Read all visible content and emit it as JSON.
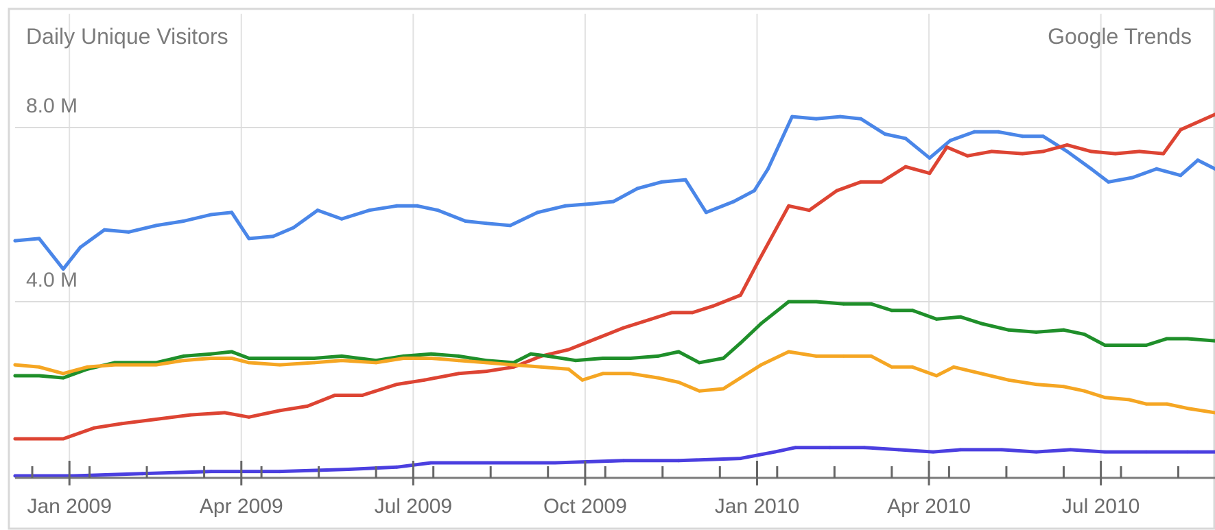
{
  "chart_data": {
    "type": "line",
    "title": "Daily Unique Visitors",
    "source": "Google Trends",
    "y_ticks": [
      {
        "value": 4.0,
        "label": "4.0 M"
      },
      {
        "value": 8.0,
        "label": "8.0 M"
      }
    ],
    "ylim": [
      0,
      10.0
    ],
    "x_ticks": [
      {
        "value": 2009.0,
        "label": "Jan 2009"
      },
      {
        "value": 2009.25,
        "label": "Apr 2009"
      },
      {
        "value": 2009.5,
        "label": "Jul 2009"
      },
      {
        "value": 2009.75,
        "label": "Oct 2009"
      },
      {
        "value": 2010.0,
        "label": "Jan 2010"
      },
      {
        "value": 2010.25,
        "label": "Apr 2010"
      },
      {
        "value": 2010.5,
        "label": "Jul 2010"
      }
    ],
    "xlim": [
      2008.915,
      2010.66
    ],
    "grid": true,
    "series": [
      {
        "color": "#4a86e8",
        "points": [
          [
            2008.915,
            5.4
          ],
          [
            2008.95,
            5.45
          ],
          [
            2008.985,
            4.75
          ],
          [
            2009.01,
            5.25
          ],
          [
            2009.045,
            5.65
          ],
          [
            2009.08,
            5.6
          ],
          [
            2009.12,
            5.75
          ],
          [
            2009.16,
            5.85
          ],
          [
            2009.2,
            6.0
          ],
          [
            2009.23,
            6.05
          ],
          [
            2009.255,
            5.45
          ],
          [
            2009.29,
            5.5
          ],
          [
            2009.32,
            5.7
          ],
          [
            2009.355,
            6.1
          ],
          [
            2009.39,
            5.9
          ],
          [
            2009.43,
            6.1
          ],
          [
            2009.47,
            6.2
          ],
          [
            2009.5,
            6.2
          ],
          [
            2009.53,
            6.1
          ],
          [
            2009.57,
            5.85
          ],
          [
            2009.6,
            5.8
          ],
          [
            2009.635,
            5.75
          ],
          [
            2009.675,
            6.05
          ],
          [
            2009.715,
            6.2
          ],
          [
            2009.755,
            6.25
          ],
          [
            2009.785,
            6.3
          ],
          [
            2009.82,
            6.6
          ],
          [
            2009.855,
            6.75
          ],
          [
            2009.89,
            6.8
          ],
          [
            2009.92,
            6.05
          ],
          [
            2009.96,
            6.3
          ],
          [
            2009.99,
            6.55
          ],
          [
            2010.01,
            7.05
          ],
          [
            2010.045,
            8.25
          ],
          [
            2010.08,
            8.2
          ],
          [
            2010.115,
            8.25
          ],
          [
            2010.145,
            8.2
          ],
          [
            2010.18,
            7.85
          ],
          [
            2010.21,
            7.75
          ],
          [
            2010.245,
            7.3
          ],
          [
            2010.275,
            7.7
          ],
          [
            2010.31,
            7.9
          ],
          [
            2010.345,
            7.9
          ],
          [
            2010.38,
            7.8
          ],
          [
            2010.41,
            7.8
          ],
          [
            2010.445,
            7.45
          ],
          [
            2010.48,
            7.05
          ],
          [
            2010.505,
            6.75
          ],
          [
            2010.54,
            6.85
          ],
          [
            2010.575,
            7.05
          ],
          [
            2010.61,
            6.9
          ],
          [
            2010.635,
            7.25
          ],
          [
            2010.66,
            7.05
          ]
        ]
      },
      {
        "color": "#dd4433",
        "points": [
          [
            2008.915,
            0.85
          ],
          [
            2008.95,
            0.85
          ],
          [
            2008.985,
            0.85
          ],
          [
            2009.03,
            1.1
          ],
          [
            2009.07,
            1.2
          ],
          [
            2009.12,
            1.3
          ],
          [
            2009.17,
            1.4
          ],
          [
            2009.22,
            1.45
          ],
          [
            2009.255,
            1.35
          ],
          [
            2009.3,
            1.5
          ],
          [
            2009.34,
            1.6
          ],
          [
            2009.38,
            1.85
          ],
          [
            2009.42,
            1.85
          ],
          [
            2009.47,
            2.1
          ],
          [
            2009.51,
            2.2
          ],
          [
            2009.56,
            2.35
          ],
          [
            2009.6,
            2.4
          ],
          [
            2009.64,
            2.5
          ],
          [
            2009.68,
            2.75
          ],
          [
            2009.72,
            2.9
          ],
          [
            2009.76,
            3.15
          ],
          [
            2009.8,
            3.4
          ],
          [
            2009.83,
            3.55
          ],
          [
            2009.87,
            3.75
          ],
          [
            2009.9,
            3.75
          ],
          [
            2009.93,
            3.9
          ],
          [
            2009.97,
            4.15
          ],
          [
            2009.995,
            4.9
          ],
          [
            2010.04,
            6.2
          ],
          [
            2010.07,
            6.1
          ],
          [
            2010.11,
            6.55
          ],
          [
            2010.145,
            6.75
          ],
          [
            2010.175,
            6.75
          ],
          [
            2010.21,
            7.1
          ],
          [
            2010.245,
            6.95
          ],
          [
            2010.27,
            7.55
          ],
          [
            2010.3,
            7.35
          ],
          [
            2010.335,
            7.45
          ],
          [
            2010.38,
            7.4
          ],
          [
            2010.41,
            7.45
          ],
          [
            2010.445,
            7.6
          ],
          [
            2010.48,
            7.45
          ],
          [
            2010.515,
            7.4
          ],
          [
            2010.55,
            7.45
          ],
          [
            2010.585,
            7.4
          ],
          [
            2010.61,
            7.95
          ],
          [
            2010.66,
            8.3
          ]
        ]
      },
      {
        "color": "#1f8f2a",
        "points": [
          [
            2008.915,
            2.3
          ],
          [
            2008.95,
            2.3
          ],
          [
            2008.985,
            2.25
          ],
          [
            2009.02,
            2.45
          ],
          [
            2009.06,
            2.6
          ],
          [
            2009.12,
            2.6
          ],
          [
            2009.16,
            2.75
          ],
          [
            2009.2,
            2.8
          ],
          [
            2009.23,
            2.85
          ],
          [
            2009.255,
            2.7
          ],
          [
            2009.3,
            2.7
          ],
          [
            2009.35,
            2.7
          ],
          [
            2009.39,
            2.75
          ],
          [
            2009.44,
            2.65
          ],
          [
            2009.48,
            2.75
          ],
          [
            2009.52,
            2.8
          ],
          [
            2009.56,
            2.75
          ],
          [
            2009.6,
            2.65
          ],
          [
            2009.64,
            2.6
          ],
          [
            2009.665,
            2.8
          ],
          [
            2009.69,
            2.75
          ],
          [
            2009.73,
            2.65
          ],
          [
            2009.77,
            2.7
          ],
          [
            2009.81,
            2.7
          ],
          [
            2009.85,
            2.75
          ],
          [
            2009.88,
            2.85
          ],
          [
            2009.91,
            2.6
          ],
          [
            2009.945,
            2.7
          ],
          [
            2009.97,
            3.05
          ],
          [
            2010.0,
            3.5
          ],
          [
            2010.04,
            4.0
          ],
          [
            2010.08,
            4.0
          ],
          [
            2010.12,
            3.95
          ],
          [
            2010.16,
            3.95
          ],
          [
            2010.19,
            3.8
          ],
          [
            2010.22,
            3.8
          ],
          [
            2010.255,
            3.6
          ],
          [
            2010.29,
            3.65
          ],
          [
            2010.32,
            3.5
          ],
          [
            2010.36,
            3.35
          ],
          [
            2010.4,
            3.3
          ],
          [
            2010.44,
            3.35
          ],
          [
            2010.47,
            3.25
          ],
          [
            2010.5,
            3.0
          ],
          [
            2010.535,
            3.0
          ],
          [
            2010.56,
            3.0
          ],
          [
            2010.59,
            3.15
          ],
          [
            2010.62,
            3.15
          ],
          [
            2010.66,
            3.1
          ]
        ]
      },
      {
        "color": "#f5a623",
        "points": [
          [
            2008.915,
            2.55
          ],
          [
            2008.95,
            2.5
          ],
          [
            2008.985,
            2.35
          ],
          [
            2009.02,
            2.5
          ],
          [
            2009.06,
            2.55
          ],
          [
            2009.12,
            2.55
          ],
          [
            2009.16,
            2.65
          ],
          [
            2009.2,
            2.7
          ],
          [
            2009.23,
            2.7
          ],
          [
            2009.255,
            2.6
          ],
          [
            2009.3,
            2.55
          ],
          [
            2009.35,
            2.6
          ],
          [
            2009.39,
            2.65
          ],
          [
            2009.44,
            2.6
          ],
          [
            2009.48,
            2.7
          ],
          [
            2009.52,
            2.7
          ],
          [
            2009.56,
            2.65
          ],
          [
            2009.6,
            2.6
          ],
          [
            2009.64,
            2.55
          ],
          [
            2009.68,
            2.5
          ],
          [
            2009.72,
            2.45
          ],
          [
            2009.74,
            2.2
          ],
          [
            2009.77,
            2.35
          ],
          [
            2009.81,
            2.35
          ],
          [
            2009.85,
            2.25
          ],
          [
            2009.88,
            2.15
          ],
          [
            2009.91,
            1.95
          ],
          [
            2009.945,
            2.0
          ],
          [
            2009.97,
            2.25
          ],
          [
            2010.0,
            2.55
          ],
          [
            2010.04,
            2.85
          ],
          [
            2010.08,
            2.75
          ],
          [
            2010.12,
            2.75
          ],
          [
            2010.16,
            2.75
          ],
          [
            2010.19,
            2.5
          ],
          [
            2010.22,
            2.5
          ],
          [
            2010.255,
            2.3
          ],
          [
            2010.28,
            2.5
          ],
          [
            2010.32,
            2.35
          ],
          [
            2010.36,
            2.2
          ],
          [
            2010.4,
            2.1
          ],
          [
            2010.44,
            2.05
          ],
          [
            2010.47,
            1.95
          ],
          [
            2010.5,
            1.8
          ],
          [
            2010.535,
            1.75
          ],
          [
            2010.56,
            1.65
          ],
          [
            2010.59,
            1.65
          ],
          [
            2010.62,
            1.55
          ],
          [
            2010.66,
            1.45
          ]
        ]
      },
      {
        "color": "#4b3fe0",
        "points": [
          [
            2008.915,
            0.0
          ],
          [
            2009.0,
            0.0
          ],
          [
            2009.1,
            0.05
          ],
          [
            2009.2,
            0.1
          ],
          [
            2009.3,
            0.1
          ],
          [
            2009.4,
            0.15
          ],
          [
            2009.47,
            0.2
          ],
          [
            2009.52,
            0.3
          ],
          [
            2009.6,
            0.3
          ],
          [
            2009.7,
            0.3
          ],
          [
            2009.8,
            0.35
          ],
          [
            2009.88,
            0.35
          ],
          [
            2009.97,
            0.4
          ],
          [
            2010.02,
            0.55
          ],
          [
            2010.05,
            0.65
          ],
          [
            2010.1,
            0.65
          ],
          [
            2010.15,
            0.65
          ],
          [
            2010.2,
            0.6
          ],
          [
            2010.25,
            0.55
          ],
          [
            2010.29,
            0.6
          ],
          [
            2010.35,
            0.6
          ],
          [
            2010.4,
            0.55
          ],
          [
            2010.45,
            0.6
          ],
          [
            2010.5,
            0.55
          ],
          [
            2010.56,
            0.55
          ],
          [
            2010.62,
            0.55
          ],
          [
            2010.66,
            0.55
          ]
        ]
      }
    ]
  }
}
